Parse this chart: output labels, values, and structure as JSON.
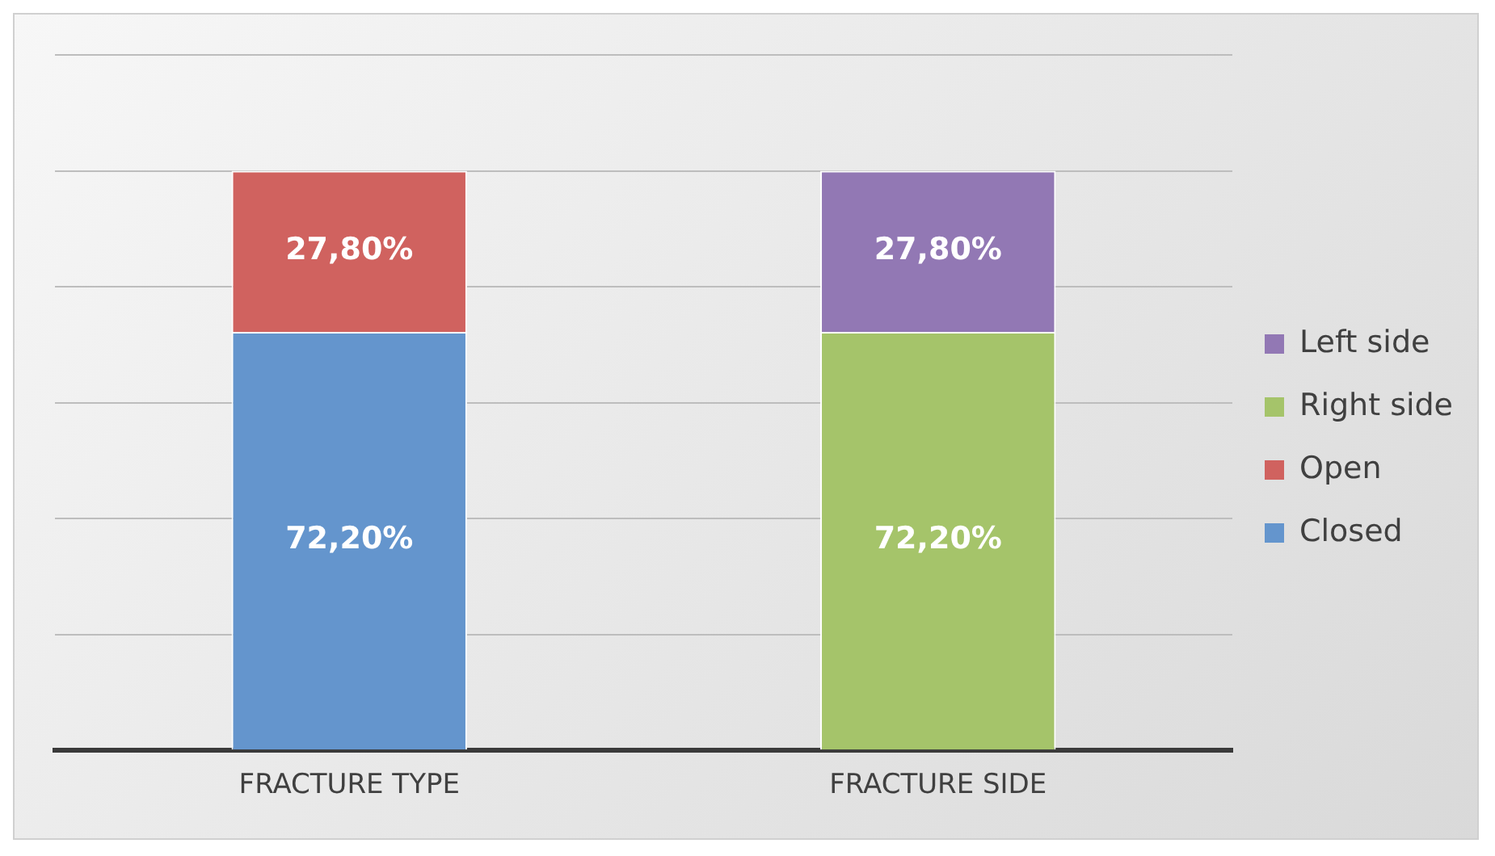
{
  "chart_data": {
    "type": "bar",
    "stacked": true,
    "categories": [
      "FRACTURE TYPE",
      "FRACTURE SIDE"
    ],
    "series": [
      {
        "name": "Closed",
        "color": "#6495cd",
        "values": [
          72.2,
          null
        ],
        "value_labels": [
          "72,20%",
          null
        ]
      },
      {
        "name": "Open",
        "color": "#d0625f",
        "values": [
          27.8,
          null
        ],
        "value_labels": [
          "27,80%",
          null
        ]
      },
      {
        "name": "Right side",
        "color": "#a5c46a",
        "values": [
          null,
          72.2
        ],
        "value_labels": [
          null,
          "72,20%"
        ]
      },
      {
        "name": "Left side",
        "color": "#9278b4",
        "values": [
          null,
          27.8
        ],
        "value_labels": [
          null,
          "27,80%"
        ]
      }
    ],
    "ylim": [
      0,
      120
    ],
    "yticks": [
      {
        "value": 0,
        "label": null
      },
      {
        "value": 20,
        "label": null
      },
      {
        "value": 40,
        "label": null
      },
      {
        "value": 60,
        "label": null
      },
      {
        "value": 80,
        "label": null
      },
      {
        "value": 100,
        "label": null
      },
      {
        "value": 120,
        "label": null
      }
    ],
    "tick_labels": "x",
    "grid": "y",
    "legend": "right"
  }
}
